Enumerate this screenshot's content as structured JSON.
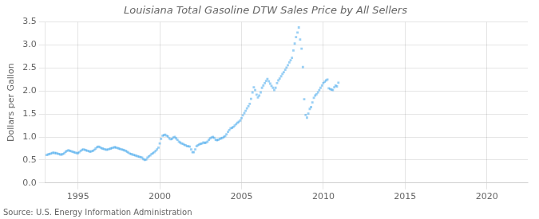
{
  "chart_data": {
    "type": "scatter",
    "title": "Louisiana Total Gasoline DTW Sales Price by All Sellers",
    "ylabel": "Dollars per Gallon",
    "annotation": "Source: U.S. Energy Information Administration",
    "marker": "square",
    "grid": true,
    "xlim": [
      1993.0,
      2022.5
    ],
    "xticks": [
      1995,
      2000,
      2005,
      2010,
      2015,
      2020
    ],
    "ylim": [
      0.0,
      3.5
    ],
    "yticks": [
      {
        "value": 0.0,
        "label": "0.0"
      },
      0.5,
      {
        "value": 1.0,
        "label": "1.0"
      },
      1.5,
      {
        "value": 2.0,
        "label": "2.0"
      },
      2.5,
      {
        "value": 3.0,
        "label": "3.0"
      },
      3.5
    ],
    "x": [
      1993.08,
      1993.17,
      1993.25,
      1993.33,
      1993.42,
      1993.5,
      1993.58,
      1993.67,
      1993.75,
      1993.83,
      1993.92,
      1994.0,
      1994.08,
      1994.17,
      1994.25,
      1994.33,
      1994.42,
      1994.5,
      1994.58,
      1994.67,
      1994.75,
      1994.83,
      1994.92,
      1995.0,
      1995.08,
      1995.17,
      1995.25,
      1995.33,
      1995.42,
      1995.5,
      1995.58,
      1995.67,
      1995.75,
      1995.83,
      1995.92,
      1996.0,
      1996.08,
      1996.17,
      1996.25,
      1996.33,
      1996.42,
      1996.5,
      1996.58,
      1996.67,
      1996.75,
      1996.83,
      1996.92,
      1997.0,
      1997.08,
      1997.17,
      1997.25,
      1997.33,
      1997.42,
      1997.5,
      1997.58,
      1997.67,
      1997.75,
      1997.83,
      1997.92,
      1998.0,
      1998.08,
      1998.17,
      1998.25,
      1998.33,
      1998.42,
      1998.5,
      1998.58,
      1998.67,
      1998.75,
      1998.83,
      1998.92,
      1999.0,
      1999.08,
      1999.17,
      1999.25,
      1999.33,
      1999.42,
      1999.5,
      1999.58,
      1999.67,
      1999.75,
      1999.83,
      1999.92,
      2000.0,
      2000.08,
      2000.17,
      2000.25,
      2000.33,
      2000.42,
      2000.5,
      2000.58,
      2000.67,
      2000.75,
      2000.83,
      2000.92,
      2001.0,
      2001.08,
      2001.17,
      2001.25,
      2001.33,
      2001.42,
      2001.5,
      2001.58,
      2001.67,
      2001.75,
      2001.83,
      2001.92,
      2002.0,
      2002.08,
      2002.17,
      2002.25,
      2002.33,
      2002.42,
      2002.5,
      2002.58,
      2002.67,
      2002.75,
      2002.83,
      2002.92,
      2003.0,
      2003.08,
      2003.17,
      2003.25,
      2003.33,
      2003.42,
      2003.5,
      2003.58,
      2003.67,
      2003.75,
      2003.83,
      2003.92,
      2004.0,
      2004.08,
      2004.17,
      2004.25,
      2004.33,
      2004.42,
      2004.5,
      2004.58,
      2004.67,
      2004.75,
      2004.83,
      2004.92,
      2005.0,
      2005.08,
      2005.17,
      2005.25,
      2005.33,
      2005.42,
      2005.5,
      2005.58,
      2005.67,
      2005.75,
      2005.83,
      2005.92,
      2006.0,
      2006.08,
      2006.17,
      2006.25,
      2006.33,
      2006.42,
      2006.5,
      2006.58,
      2006.67,
      2006.75,
      2006.83,
      2006.92,
      2007.0,
      2007.08,
      2007.17,
      2007.25,
      2007.33,
      2007.42,
      2007.5,
      2007.58,
      2007.67,
      2007.75,
      2007.83,
      2007.92,
      2008.0,
      2008.08,
      2008.17,
      2008.25,
      2008.33,
      2008.42,
      2008.5,
      2008.58,
      2008.67,
      2008.75,
      2008.83,
      2008.92,
      2009.0,
      2009.08,
      2009.17,
      2009.25,
      2009.33,
      2009.42,
      2009.5,
      2009.58,
      2009.67,
      2009.75,
      2009.83,
      2009.92,
      2010.0,
      2010.08,
      2010.17,
      2010.25,
      2010.33,
      2010.42,
      2010.5,
      2010.58,
      2010.67,
      2010.75,
      2010.83,
      2010.92
    ],
    "values": [
      0.61,
      0.62,
      0.63,
      0.64,
      0.65,
      0.66,
      0.65,
      0.65,
      0.64,
      0.63,
      0.62,
      0.62,
      0.63,
      0.65,
      0.68,
      0.7,
      0.71,
      0.7,
      0.69,
      0.68,
      0.67,
      0.66,
      0.65,
      0.65,
      0.67,
      0.7,
      0.72,
      0.73,
      0.72,
      0.71,
      0.7,
      0.69,
      0.68,
      0.69,
      0.7,
      0.72,
      0.75,
      0.78,
      0.79,
      0.78,
      0.76,
      0.75,
      0.74,
      0.73,
      0.72,
      0.73,
      0.74,
      0.75,
      0.76,
      0.77,
      0.78,
      0.77,
      0.76,
      0.75,
      0.74,
      0.73,
      0.72,
      0.71,
      0.7,
      0.68,
      0.66,
      0.64,
      0.63,
      0.62,
      0.61,
      0.6,
      0.59,
      0.58,
      0.57,
      0.56,
      0.55,
      0.52,
      0.5,
      0.51,
      0.55,
      0.58,
      0.6,
      0.63,
      0.65,
      0.67,
      0.7,
      0.73,
      0.77,
      0.86,
      0.96,
      1.03,
      1.04,
      1.05,
      1.03,
      1.01,
      0.97,
      0.95,
      0.96,
      0.99,
      1.0,
      0.97,
      0.94,
      0.9,
      0.88,
      0.86,
      0.85,
      0.83,
      0.82,
      0.8,
      0.8,
      0.79,
      0.73,
      0.67,
      0.67,
      0.73,
      0.8,
      0.82,
      0.84,
      0.85,
      0.86,
      0.88,
      0.87,
      0.88,
      0.9,
      0.94,
      0.97,
      0.99,
      1.0,
      0.98,
      0.94,
      0.93,
      0.94,
      0.96,
      0.97,
      0.98,
      1.0,
      1.02,
      1.06,
      1.11,
      1.15,
      1.19,
      1.2,
      1.22,
      1.25,
      1.28,
      1.31,
      1.33,
      1.36,
      1.41,
      1.47,
      1.52,
      1.57,
      1.62,
      1.67,
      1.72,
      1.83,
      1.97,
      2.08,
      2.02,
      1.92,
      1.86,
      1.9,
      1.97,
      2.07,
      2.12,
      2.17,
      2.22,
      2.26,
      2.21,
      2.16,
      2.11,
      2.07,
      2.02,
      2.07,
      2.17,
      2.23,
      2.27,
      2.32,
      2.37,
      2.41,
      2.46,
      2.51,
      2.56,
      2.62,
      2.67,
      2.72,
      2.88,
      3.03,
      3.17,
      3.27,
      3.38,
      3.12,
      2.92,
      2.52,
      1.82,
      1.48,
      1.42,
      1.51,
      1.61,
      1.65,
      1.75,
      1.85,
      1.9,
      1.93,
      1.97,
      2.02,
      2.07,
      2.12,
      2.17,
      2.2,
      2.23,
      2.25,
      2.06,
      2.04,
      2.03,
      2.02,
      2.08,
      2.12,
      2.1,
      2.18
    ]
  }
}
